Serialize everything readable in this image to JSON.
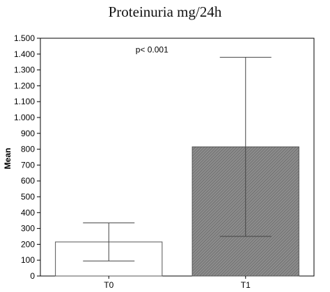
{
  "chart_data": {
    "type": "bar",
    "title": "Proteinuria mg/24h",
    "ylabel": "Mean",
    "xlabel": "",
    "categories": [
      "T0",
      "T1"
    ],
    "values": [
      215,
      815
    ],
    "error_bars": [
      {
        "low": 95,
        "high": 335
      },
      {
        "low": 250,
        "high": 1380
      }
    ],
    "bar_fills": [
      "#ffffff",
      "#8c8c8c"
    ],
    "ylim": [
      0,
      1500
    ],
    "yticks": [
      0,
      100,
      200,
      300,
      400,
      500,
      600,
      700,
      800,
      900,
      1000,
      1100,
      1200,
      1300,
      1400,
      1500
    ],
    "ytick_labels": [
      "0",
      "100",
      "200",
      "300",
      "400",
      "500",
      "600",
      "700",
      "800",
      "900",
      "1.000",
      "1.100",
      "1.200",
      "1.300",
      "1.400",
      "1.500"
    ],
    "annotation": {
      "text": "p< 0.001",
      "x_category": "T0",
      "y": 1410
    },
    "grid": false,
    "legend": "none"
  }
}
